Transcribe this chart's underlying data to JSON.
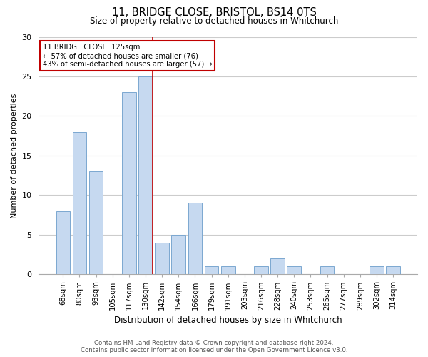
{
  "title1": "11, BRIDGE CLOSE, BRISTOL, BS14 0TS",
  "title2": "Size of property relative to detached houses in Whitchurch",
  "xlabel": "Distribution of detached houses by size in Whitchurch",
  "ylabel": "Number of detached properties",
  "categories": [
    "68sqm",
    "80sqm",
    "93sqm",
    "105sqm",
    "117sqm",
    "130sqm",
    "142sqm",
    "154sqm",
    "166sqm",
    "179sqm",
    "191sqm",
    "203sqm",
    "216sqm",
    "228sqm",
    "240sqm",
    "253sqm",
    "265sqm",
    "277sqm",
    "289sqm",
    "302sqm",
    "314sqm"
  ],
  "values": [
    8,
    18,
    13,
    0,
    23,
    25,
    4,
    5,
    9,
    1,
    1,
    0,
    1,
    2,
    1,
    0,
    1,
    0,
    0,
    1,
    1
  ],
  "bar_color": "#c6d9f0",
  "bar_edge_color": "#7ba7d0",
  "highlight_index": 5,
  "highlight_color": "#c00000",
  "annotation_box_color": "#ffffff",
  "annotation_box_edge": "#c00000",
  "annotation_line1": "11 BRIDGE CLOSE: 125sqm",
  "annotation_line2": "← 57% of detached houses are smaller (76)",
  "annotation_line3": "43% of semi-detached houses are larger (57) →",
  "ylim": [
    0,
    30
  ],
  "yticks": [
    0,
    5,
    10,
    15,
    20,
    25,
    30
  ],
  "footer_line1": "Contains HM Land Registry data © Crown copyright and database right 2024.",
  "footer_line2": "Contains public sector information licensed under the Open Government Licence v3.0.",
  "background_color": "#ffffff",
  "grid_color": "#cccccc"
}
